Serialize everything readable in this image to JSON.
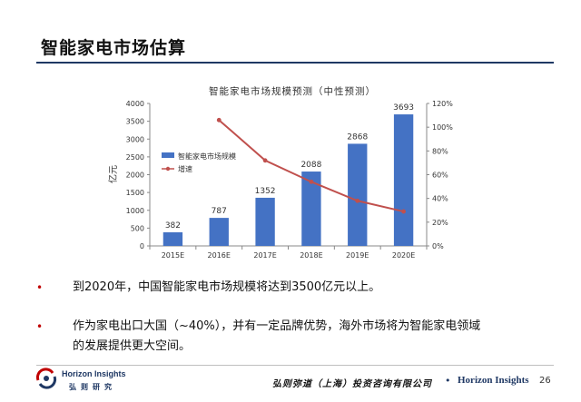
{
  "slide": {
    "title": "智能家电市场估算",
    "bullets": [
      {
        "line1": "到2020年，中国智能家电市场规模将达到3500亿元以上。",
        "line2": ""
      },
      {
        "line1": "作为家电出口大国（~40%），并有一定品牌优势，海外市场将为智能家电领域",
        "line2": "的发展提供更大空间。"
      }
    ],
    "bullet_marker": "•"
  },
  "footer": {
    "logo_en": "Horizon Insights",
    "logo_cn": "弘则研究",
    "company": "弘则弥道（上海）投资咨询有限公司",
    "separator": "•",
    "brand": "Horizon Insights",
    "page_number": "26"
  },
  "colors": {
    "bar": "#4472c4",
    "line": "#c0504d",
    "title_rule": "#1f3864"
  },
  "chart_data": {
    "type": "bar",
    "title": "智能家电市场规模预测（中性预测）",
    "ylabel": "亿元",
    "categories": [
      "2015E",
      "2016E",
      "2017E",
      "2018E",
      "2019E",
      "2020E"
    ],
    "series": [
      {
        "name": "智能家电市场规模",
        "type": "bar",
        "axis": "left",
        "values": [
          382,
          787,
          1352,
          2088,
          2868,
          3693
        ]
      },
      {
        "name": "增速",
        "type": "line",
        "axis": "right",
        "values": [
          null,
          1.06,
          0.72,
          0.54,
          0.38,
          0.29
        ]
      }
    ],
    "ylim": [
      0,
      4000
    ],
    "yticks": [
      "0",
      "500",
      "1000",
      "1500",
      "2000",
      "2500",
      "3000",
      "3500",
      "4000"
    ],
    "y2lim": [
      0,
      1.2
    ],
    "y2ticks": [
      "0%",
      "20%",
      "40%",
      "60%",
      "80%",
      "100%",
      "120%"
    ],
    "grid": false,
    "legend": "left"
  }
}
